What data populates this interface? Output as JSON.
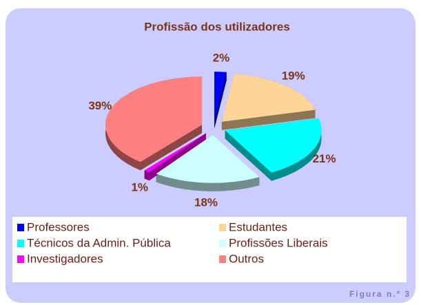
{
  "chart_data": {
    "type": "pie",
    "title": "Profissão dos utilizadores",
    "categories": [
      "Professores",
      "Estudantes",
      "Técnicos da Admin. Pública",
      "Profissões Liberais",
      "Investigadores",
      "Outros"
    ],
    "values": [
      2,
      19,
      21,
      18,
      1,
      39
    ],
    "value_labels": [
      "2%",
      "19%",
      "21%",
      "18%",
      "1%",
      "39%"
    ],
    "colors": [
      "#0000ff",
      "#ffd699",
      "#00ffff",
      "#ccffff",
      "#ff00ff",
      "#ff8080"
    ]
  },
  "caption": "Figura n.º 3"
}
